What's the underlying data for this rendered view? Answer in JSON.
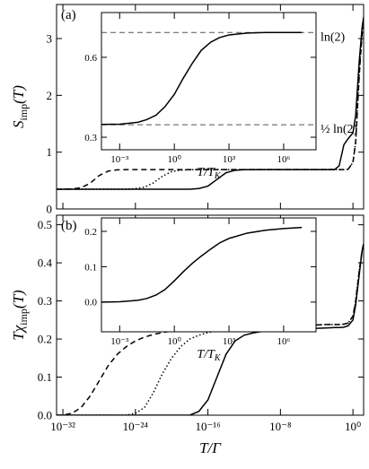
{
  "chart_data": [
    {
      "type": "line",
      "annotation": "(a)",
      "ylabel": [
        "S",
        "imp",
        "(T)"
      ],
      "xlog": true,
      "xlim": [
        2e-33,
        15
      ],
      "ylim": [
        0,
        3.6
      ],
      "yticks": [
        0,
        1,
        2,
        3
      ],
      "x": [
        2e-33,
        1e-32,
        1e-31,
        1e-30,
        1e-29,
        1e-28,
        1e-27,
        1e-26,
        1e-25,
        1e-24,
        1e-23,
        1e-22,
        1e-21,
        1e-20,
        1e-19,
        1e-18,
        1e-17,
        1e-16,
        1e-15,
        1e-14,
        1e-13,
        1e-12,
        1e-11,
        1e-10,
        1e-09,
        1e-08,
        1e-07,
        1e-06,
        1e-05,
        0.0001,
        0.001,
        0.01,
        0.03,
        0.1,
        0.3,
        1,
        2,
        5,
        10,
        15
      ],
      "series": [
        {
          "color": "#000000",
          "style": "solid",
          "values": [
            0.347,
            0.347,
            0.347,
            0.347,
            0.347,
            0.347,
            0.347,
            0.347,
            0.347,
            0.347,
            0.347,
            0.347,
            0.347,
            0.347,
            0.347,
            0.347,
            0.359,
            0.402,
            0.52,
            0.638,
            0.681,
            0.691,
            0.693,
            0.693,
            0.693,
            0.693,
            0.693,
            0.693,
            0.693,
            0.693,
            0.693,
            0.696,
            0.76,
            1.13,
            1.24,
            1.34,
            1.65,
            2.61,
            3.18,
            3.38
          ]
        },
        {
          "color": "#000000",
          "style": "dashed",
          "values": [
            0.347,
            0.347,
            0.352,
            0.373,
            0.452,
            0.588,
            0.667,
            0.688,
            0.693,
            0.693,
            0.693,
            0.693,
            0.693,
            0.693,
            0.693,
            0.693,
            0.693,
            0.693,
            0.693,
            0.693,
            0.693,
            0.693,
            0.693,
            0.693,
            0.693,
            0.693,
            0.693,
            0.693,
            0.693,
            0.693,
            0.693,
            0.693,
            0.693,
            0.693,
            0.7,
            0.82,
            1.18,
            2.37,
            3.07,
            3.29
          ]
        },
        {
          "color": "#000000",
          "style": "dotted",
          "values": [
            0.347,
            0.347,
            0.347,
            0.347,
            0.347,
            0.347,
            0.347,
            0.347,
            0.347,
            0.356,
            0.383,
            0.461,
            0.579,
            0.657,
            0.684,
            0.69,
            0.693,
            0.693,
            0.693,
            0.693,
            0.693,
            0.693,
            0.693,
            0.693,
            0.693,
            0.693,
            0.693,
            0.693,
            0.693,
            0.693,
            0.693,
            0.693,
            0.693,
            0.693,
            0.7,
            0.82,
            1.18,
            2.37,
            3.07,
            3.29
          ]
        }
      ]
    },
    {
      "type": "line",
      "annotation": "(b)",
      "ylabel": [
        "Tχ",
        "imp",
        "(T)"
      ],
      "xlabel": "T/Γ",
      "xlog": true,
      "xlim": [
        2e-33,
        15
      ],
      "ylim": [
        0,
        0.525
      ],
      "xticks": [
        {
          "value": 1e-32,
          "label": "10⁻³²"
        },
        {
          "value": 1e-24,
          "label": "10⁻²⁴"
        },
        {
          "value": 1e-16,
          "label": "10⁻¹⁶"
        },
        {
          "value": 1e-08,
          "label": "10⁻⁸"
        },
        {
          "value": 1,
          "label": "10⁰"
        }
      ],
      "yticks": [
        {
          "value": 0,
          "label": "0.0"
        },
        0.1,
        0.2,
        0.3,
        0.4,
        0.5
      ],
      "x": [
        2e-33,
        1e-32,
        1e-31,
        1e-30,
        1e-29,
        1e-28,
        1e-27,
        1e-26,
        1e-25,
        1e-24,
        1e-23,
        1e-22,
        1e-21,
        1e-20,
        1e-19,
        1e-18,
        1e-17,
        1e-16,
        1e-15,
        1e-14,
        1e-13,
        1e-12,
        1e-11,
        1e-10,
        1e-09,
        1e-08,
        1e-07,
        1e-06,
        1e-05,
        0.0001,
        0.001,
        0.01,
        0.03,
        0.1,
        0.3,
        1,
        2,
        5,
        10,
        15
      ],
      "series": [
        {
          "color": "#000000",
          "style": "solid",
          "values": [
            0,
            0,
            0,
            0,
            0,
            0,
            0,
            0,
            0,
            0,
            0,
            0,
            0,
            0,
            0,
            0,
            0.01,
            0.04,
            0.1,
            0.16,
            0.195,
            0.21,
            0.216,
            0.22,
            0.222,
            0.224,
            0.225,
            0.226,
            0.227,
            0.228,
            0.229,
            0.23,
            0.23,
            0.231,
            0.235,
            0.25,
            0.29,
            0.37,
            0.43,
            0.45
          ]
        },
        {
          "color": "#000000",
          "style": "dashed",
          "values": [
            0,
            0,
            0.005,
            0.02,
            0.05,
            0.09,
            0.13,
            0.16,
            0.18,
            0.195,
            0.205,
            0.212,
            0.217,
            0.221,
            0.224,
            0.226,
            0.228,
            0.229,
            0.23,
            0.231,
            0.232,
            0.233,
            0.234,
            0.234,
            0.235,
            0.235,
            0.236,
            0.236,
            0.237,
            0.237,
            0.238,
            0.238,
            0.238,
            0.239,
            0.242,
            0.26,
            0.3,
            0.38,
            0.43,
            0.45
          ]
        },
        {
          "color": "#000000",
          "style": "dotted",
          "values": [
            0,
            0,
            0,
            0,
            0,
            0,
            0,
            0,
            0,
            0.005,
            0.02,
            0.06,
            0.11,
            0.15,
            0.18,
            0.2,
            0.21,
            0.217,
            0.222,
            0.226,
            0.228,
            0.23,
            0.231,
            0.232,
            0.233,
            0.234,
            0.235,
            0.236,
            0.237,
            0.237,
            0.238,
            0.238,
            0.238,
            0.239,
            0.242,
            0.26,
            0.3,
            0.38,
            0.43,
            0.45
          ]
        }
      ]
    },
    {
      "type": "line",
      "xlabel": [
        "T/T",
        "K"
      ],
      "xlog": true,
      "xlim": [
        0.0001,
        60000000.0
      ],
      "ylim": [
        0.253,
        0.768
      ],
      "xticks": [
        {
          "value": 0.001,
          "label": "10⁻³"
        },
        {
          "value": 1,
          "label": "10⁰"
        },
        {
          "value": 1000,
          "label": "10³"
        },
        {
          "value": 1000000,
          "label": "10⁶"
        }
      ],
      "yticks": [
        0.3,
        0.6
      ],
      "hlines": [
        {
          "value": 0.693,
          "label": "ln(2)"
        },
        {
          "value": 0.347,
          "label": "½ ln(2)"
        }
      ],
      "x": [
        0.0001,
        0.001,
        0.01,
        0.03,
        0.1,
        0.3,
        1,
        3,
        10,
        30,
        100,
        300,
        1000,
        10000.0,
        100000.0,
        1000000.0,
        10000000.0
      ],
      "series": [
        {
          "color": "#000000",
          "style": "solid",
          "values": [
            0.348,
            0.349,
            0.356,
            0.366,
            0.383,
            0.414,
            0.461,
            0.52,
            0.579,
            0.626,
            0.657,
            0.674,
            0.684,
            0.691,
            0.693,
            0.693,
            0.693
          ]
        }
      ]
    },
    {
      "type": "line",
      "xlabel": [
        "T/T",
        "K"
      ],
      "xlog": true,
      "xlim": [
        0.0001,
        60000000.0
      ],
      "ylim": [
        -0.084,
        0.238
      ],
      "xticks": [
        {
          "value": 0.001,
          "label": "10⁻³"
        },
        {
          "value": 1,
          "label": "10⁰"
        },
        {
          "value": 1000,
          "label": "10³"
        },
        {
          "value": 1000000,
          "label": "10⁶"
        }
      ],
      "yticks": [
        {
          "value": 0,
          "label": "0.0"
        },
        0.1,
        0.2
      ],
      "x": [
        0.0001,
        0.001,
        0.01,
        0.03,
        0.1,
        0.3,
        1,
        3,
        10,
        30,
        100,
        300,
        1000,
        10000.0,
        100000.0,
        1000000.0,
        10000000.0
      ],
      "series": [
        {
          "color": "#000000",
          "style": "solid",
          "values": [
            0,
            0.001,
            0.005,
            0.01,
            0.02,
            0.035,
            0.06,
            0.085,
            0.11,
            0.13,
            0.15,
            0.167,
            0.18,
            0.195,
            0.203,
            0.208,
            0.211
          ]
        }
      ]
    }
  ]
}
